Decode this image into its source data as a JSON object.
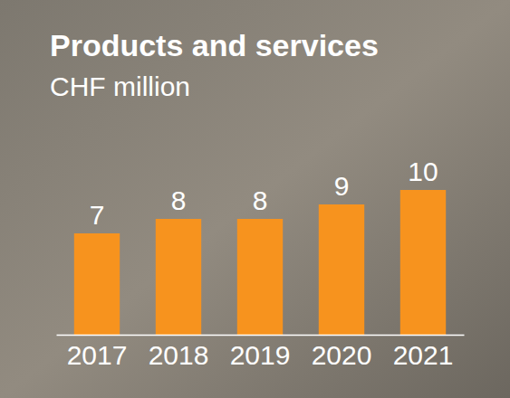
{
  "chart_data": {
    "type": "bar",
    "title": "Products and services",
    "subtitle": "CHF million",
    "categories": [
      "2017",
      "2018",
      "2019",
      "2020",
      "2021"
    ],
    "values": [
      7,
      8,
      8,
      9,
      10
    ],
    "color": "#f7931e",
    "ylim": [
      0,
      16.5
    ],
    "data_labels": true,
    "tick_labels": "x",
    "grid": false
  }
}
